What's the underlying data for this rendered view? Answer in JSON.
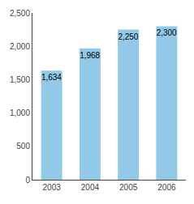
{
  "chart_data": {
    "type": "bar",
    "categories": [
      "2003",
      "2004",
      "2005",
      "2006"
    ],
    "values": [
      1634,
      1968,
      2250,
      2300
    ],
    "value_labels": [
      "1,634",
      "1,968",
      "2,250",
      "2,300"
    ],
    "data_labels": true,
    "color": "#92C9E8",
    "ylim": [
      0,
      2500
    ],
    "yticks": [
      0,
      500,
      {
        "value": 1000,
        "label": "1,000"
      },
      {
        "value": 1500,
        "label": "1,500"
      },
      {
        "value": 2000,
        "label": "2,000"
      },
      {
        "value": 2500,
        "label": "2,500"
      }
    ],
    "grid": false
  }
}
